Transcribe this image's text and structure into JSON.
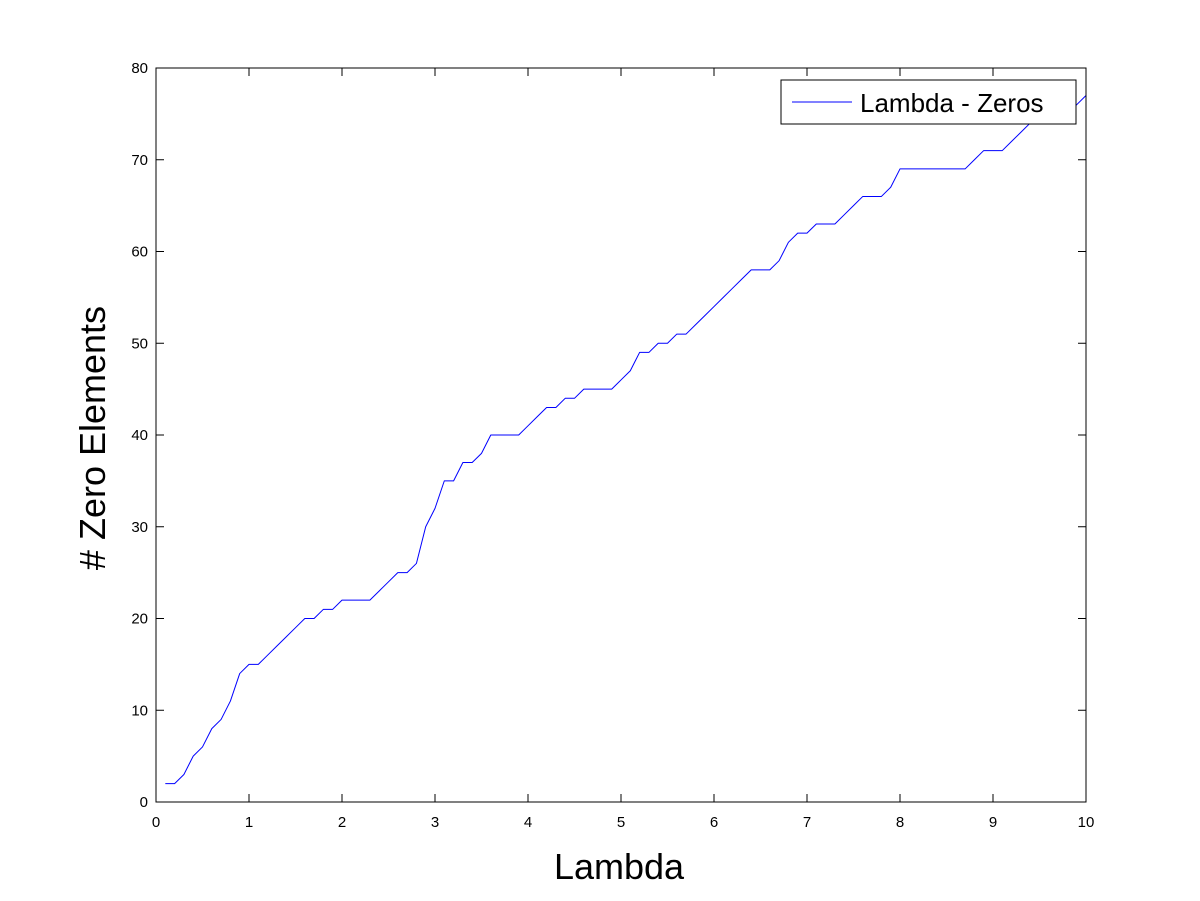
{
  "chart_data": {
    "type": "line",
    "xlabel": "Lambda",
    "ylabel": "# Zero Elements",
    "xlim": [
      0,
      10
    ],
    "ylim": [
      0,
      80
    ],
    "x_ticks": [
      0,
      1,
      2,
      3,
      4,
      5,
      6,
      7,
      8,
      9,
      10
    ],
    "y_ticks": [
      0,
      10,
      20,
      30,
      40,
      50,
      60,
      70,
      80
    ],
    "grid": false,
    "legend_position": "top-right",
    "series": [
      {
        "name": "Lambda - Zeros",
        "color": "#0000ff",
        "points": [
          [
            0.1,
            2
          ],
          [
            0.2,
            2
          ],
          [
            0.3,
            3
          ],
          [
            0.4,
            5
          ],
          [
            0.5,
            6
          ],
          [
            0.6,
            8
          ],
          [
            0.7,
            9
          ],
          [
            0.8,
            11
          ],
          [
            0.9,
            14
          ],
          [
            1.0,
            15
          ],
          [
            1.1,
            15
          ],
          [
            1.2,
            16
          ],
          [
            1.3,
            17
          ],
          [
            1.4,
            18
          ],
          [
            1.5,
            19
          ],
          [
            1.6,
            20
          ],
          [
            1.7,
            20
          ],
          [
            1.8,
            21
          ],
          [
            1.9,
            21
          ],
          [
            2.0,
            22
          ],
          [
            2.1,
            22
          ],
          [
            2.2,
            22
          ],
          [
            2.3,
            22
          ],
          [
            2.4,
            23
          ],
          [
            2.5,
            24
          ],
          [
            2.6,
            25
          ],
          [
            2.7,
            25
          ],
          [
            2.8,
            26
          ],
          [
            2.9,
            30
          ],
          [
            3.0,
            32
          ],
          [
            3.1,
            35
          ],
          [
            3.2,
            35
          ],
          [
            3.3,
            37
          ],
          [
            3.4,
            37
          ],
          [
            3.5,
            38
          ],
          [
            3.6,
            40
          ],
          [
            3.7,
            40
          ],
          [
            3.8,
            40
          ],
          [
            3.9,
            40
          ],
          [
            4.0,
            41
          ],
          [
            4.1,
            42
          ],
          [
            4.2,
            43
          ],
          [
            4.3,
            43
          ],
          [
            4.4,
            44
          ],
          [
            4.5,
            44
          ],
          [
            4.6,
            45
          ],
          [
            4.7,
            45
          ],
          [
            4.8,
            45
          ],
          [
            4.9,
            45
          ],
          [
            5.0,
            46
          ],
          [
            5.1,
            47
          ],
          [
            5.2,
            49
          ],
          [
            5.3,
            49
          ],
          [
            5.4,
            50
          ],
          [
            5.5,
            50
          ],
          [
            5.6,
            51
          ],
          [
            5.7,
            51
          ],
          [
            5.8,
            52
          ],
          [
            5.9,
            53
          ],
          [
            6.0,
            54
          ],
          [
            6.1,
            55
          ],
          [
            6.2,
            56
          ],
          [
            6.3,
            57
          ],
          [
            6.4,
            58
          ],
          [
            6.5,
            58
          ],
          [
            6.6,
            58
          ],
          [
            6.7,
            59
          ],
          [
            6.8,
            61
          ],
          [
            6.9,
            62
          ],
          [
            7.0,
            62
          ],
          [
            7.1,
            63
          ],
          [
            7.2,
            63
          ],
          [
            7.3,
            63
          ],
          [
            7.4,
            64
          ],
          [
            7.5,
            65
          ],
          [
            7.6,
            66
          ],
          [
            7.7,
            66
          ],
          [
            7.8,
            66
          ],
          [
            7.9,
            67
          ],
          [
            8.0,
            69
          ],
          [
            8.1,
            69
          ],
          [
            8.2,
            69
          ],
          [
            8.3,
            69
          ],
          [
            8.4,
            69
          ],
          [
            8.5,
            69
          ],
          [
            8.6,
            69
          ],
          [
            8.7,
            69
          ],
          [
            8.8,
            70
          ],
          [
            8.9,
            71
          ],
          [
            9.0,
            71
          ],
          [
            9.1,
            71
          ],
          [
            9.2,
            72
          ],
          [
            9.3,
            73
          ],
          [
            9.4,
            74
          ],
          [
            9.5,
            75
          ],
          [
            9.6,
            75
          ],
          [
            9.7,
            75
          ],
          [
            9.8,
            75
          ],
          [
            9.9,
            76
          ],
          [
            10.0,
            77
          ]
        ]
      }
    ]
  }
}
